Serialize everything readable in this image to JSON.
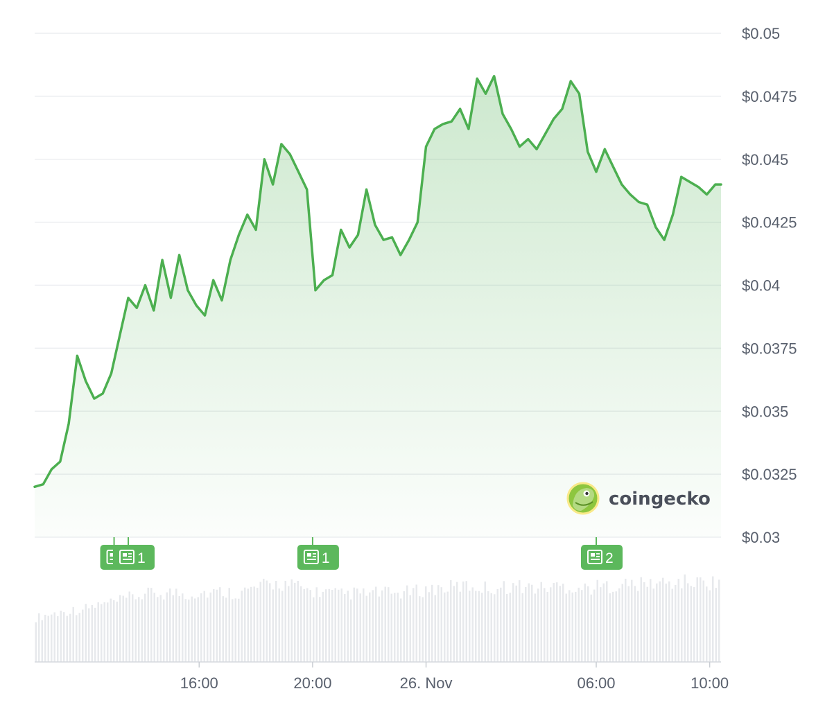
{
  "chart_data": {
    "type": "area",
    "title": "",
    "xlabel": "",
    "ylabel": "",
    "ylim": [
      0.03,
      0.05
    ],
    "y_ticks": [
      {
        "value": 0.05,
        "label": "$0.05"
      },
      {
        "value": 0.0475,
        "label": "$0.0475"
      },
      {
        "value": 0.045,
        "label": "$0.045"
      },
      {
        "value": 0.0425,
        "label": "$0.0425"
      },
      {
        "value": 0.04,
        "label": "$0.04"
      },
      {
        "value": 0.0375,
        "label": "$0.0375"
      },
      {
        "value": 0.035,
        "label": "$0.035"
      },
      {
        "value": 0.0325,
        "label": "$0.0325"
      },
      {
        "value": 0.03,
        "label": "$0.03"
      }
    ],
    "x_range_hours": [
      10.2,
      34.4
    ],
    "x_ticks": [
      {
        "hour": 16,
        "label": "16:00"
      },
      {
        "hour": 20,
        "label": "20:00"
      },
      {
        "hour": 24,
        "label": "26. Nov"
      },
      {
        "hour": 30,
        "label": "06:00"
      },
      {
        "hour": 34,
        "label": "10:00"
      }
    ],
    "grid": true,
    "line_color": "#4caf50",
    "fill_color": "#4caf50",
    "series": [
      {
        "x_hours": [
          10.2,
          10.5,
          10.8,
          11.1,
          11.4,
          11.7,
          12.0,
          12.3,
          12.6,
          12.9,
          13.2,
          13.5,
          13.8,
          14.1,
          14.4,
          14.7,
          15.0,
          15.3,
          15.6,
          15.9,
          16.2,
          16.5,
          16.8,
          17.1,
          17.4,
          17.7,
          18.0,
          18.3,
          18.6,
          18.9,
          19.2,
          19.5,
          19.8,
          20.1,
          20.4,
          20.7,
          21.0,
          21.3,
          21.6,
          21.9,
          22.2,
          22.5,
          22.8,
          23.1,
          23.4,
          23.7,
          24.0,
          24.3,
          24.6,
          24.9,
          25.2,
          25.5,
          25.8,
          26.1,
          26.4,
          26.7,
          27.0,
          27.3,
          27.6,
          27.9,
          28.2,
          28.5,
          28.8,
          29.1,
          29.4,
          29.7,
          30.0,
          30.3,
          30.6,
          30.9,
          31.2,
          31.5,
          31.8,
          32.1,
          32.4,
          32.7,
          33.0,
          33.3,
          33.6,
          33.9,
          34.2,
          34.4
        ],
        "values": [
          0.032,
          0.0321,
          0.0327,
          0.033,
          0.0345,
          0.0372,
          0.0362,
          0.0355,
          0.0357,
          0.0365,
          0.038,
          0.0395,
          0.0391,
          0.04,
          0.039,
          0.041,
          0.0395,
          0.0412,
          0.0398,
          0.0392,
          0.0388,
          0.0402,
          0.0394,
          0.041,
          0.042,
          0.0428,
          0.0422,
          0.045,
          0.044,
          0.0456,
          0.0452,
          0.0445,
          0.0438,
          0.0398,
          0.0402,
          0.0404,
          0.0422,
          0.0415,
          0.042,
          0.0438,
          0.0424,
          0.0418,
          0.0419,
          0.0412,
          0.0418,
          0.0425,
          0.0455,
          0.0462,
          0.0464,
          0.0465,
          0.047,
          0.0462,
          0.0482,
          0.0476,
          0.0483,
          0.0468,
          0.0462,
          0.0455,
          0.0458,
          0.0454,
          0.046,
          0.0466,
          0.047,
          0.0481,
          0.0476,
          0.0453,
          0.0445,
          0.0454,
          0.0447,
          0.044,
          0.0436,
          0.0433,
          0.0432,
          0.0423,
          0.0418,
          0.0428,
          0.0443,
          0.0441,
          0.0439,
          0.0436,
          0.044,
          0.044
        ]
      }
    ],
    "news_markers": [
      {
        "hour": 13.0,
        "count": "1",
        "show_count": false
      },
      {
        "hour": 13.5,
        "count": "1",
        "show_count": true
      },
      {
        "hour": 20.0,
        "count": "1",
        "show_count": true
      },
      {
        "hour": 30.0,
        "count": "2",
        "show_count": true
      }
    ],
    "volume": {
      "relative_values": [
        0.55,
        0.58,
        0.6,
        0.62,
        0.64,
        0.65,
        0.67,
        0.7,
        0.72,
        0.74,
        0.76,
        0.8,
        0.82,
        0.84,
        0.86,
        0.85,
        0.87,
        0.86,
        0.84,
        0.86,
        0.87,
        0.86,
        0.88,
        0.87,
        0.86,
        0.89,
        0.92,
        0.95,
        0.97,
        0.98,
        0.96,
        0.94,
        0.9,
        0.88,
        0.87,
        0.86,
        0.84,
        0.85,
        0.86,
        0.85,
        0.86,
        0.87,
        0.85,
        0.86,
        0.87,
        0.88,
        0.9,
        0.91,
        0.92,
        0.93,
        0.94,
        0.95,
        0.94,
        0.93,
        0.92,
        0.93,
        0.94,
        0.95,
        0.94,
        0.93,
        0.92,
        0.94,
        0.95,
        0.94,
        0.93,
        0.92,
        0.93,
        0.94,
        0.95,
        0.96,
        0.97,
        0.96,
        0.97,
        0.98,
        0.99,
        0.98,
        0.99,
        1.0,
        0.99,
        1.0,
        0.99,
        1.0
      ]
    }
  },
  "watermark": {
    "label": "coingecko"
  },
  "icons": {
    "news": "newspaper-icon",
    "brand": "gecko-logo-icon"
  }
}
